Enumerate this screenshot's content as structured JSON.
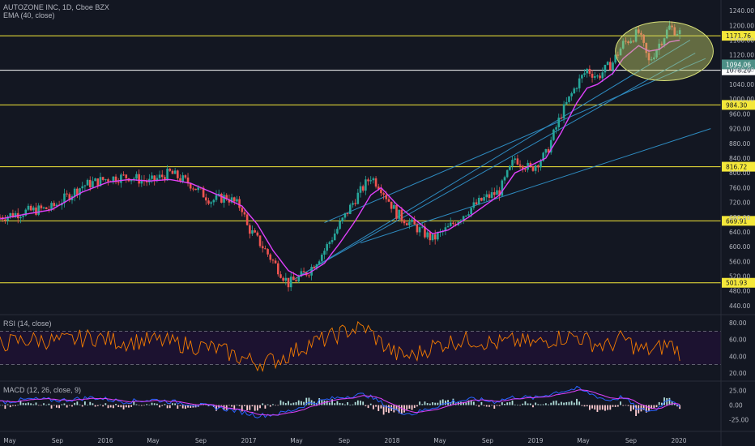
{
  "legend": {
    "main": "AUTOZONE INC, 1D, Cboe BZX",
    "ema": "EMA (40, close)",
    "rsi": "RSI (14, close)",
    "macd": "MACD (12, 26, close, 9)"
  },
  "colors": {
    "background": "#131722",
    "up": "#26a69a",
    "down": "#ef5350",
    "ema": "#e040fb",
    "level": "#f5e83a",
    "level_white": "#ffffff",
    "trend": "#2e8bc0",
    "rsi": "#f57c00",
    "rsi_band": "#1c1230",
    "macd_line": "#2962ff",
    "signal_line": "#e040fb",
    "ellipse": "#c5d26a"
  },
  "chart_data": [
    {
      "type": "candlestick",
      "title": "AUTOZONE INC, 1D, Cboe BZX",
      "x_ticks": [
        "May",
        "Sep",
        "2016",
        "May",
        "Sep",
        "2017",
        "May",
        "Sep",
        "2018",
        "May",
        "Sep",
        "2019",
        "May",
        "Sep",
        "2020"
      ],
      "y_ticks": [
        "1240.00",
        "1200.00",
        "1160.00",
        "1120.00",
        "1080.00",
        "1040.00",
        "1000.00",
        "960.00",
        "920.00",
        "880.00",
        "840.00",
        "800.00",
        "760.00",
        "720.00",
        "680.00",
        "640.00",
        "600.00",
        "560.00",
        "520.00",
        "480.00",
        "440.00"
      ],
      "ylim": [
        420,
        1260
      ],
      "price_path": [
        [
          0,
          680
        ],
        [
          5,
          695
        ],
        [
          10,
          705
        ],
        [
          16,
          765
        ],
        [
          21,
          785
        ],
        [
          25,
          790
        ],
        [
          29,
          775
        ],
        [
          33,
          800
        ],
        [
          37,
          770
        ],
        [
          41,
          725
        ],
        [
          44,
          735
        ],
        [
          47,
          705
        ],
        [
          48,
          655
        ],
        [
          51,
          600
        ],
        [
          54,
          540
        ],
        [
          56,
          500
        ],
        [
          58,
          515
        ],
        [
          60,
          535
        ],
        [
          63,
          590
        ],
        [
          66,
          660
        ],
        [
          69,
          730
        ],
        [
          72,
          790
        ],
        [
          74,
          760
        ],
        [
          77,
          690
        ],
        [
          80,
          660
        ],
        [
          84,
          620
        ],
        [
          87,
          650
        ],
        [
          91,
          700
        ],
        [
          94,
          730
        ],
        [
          97,
          750
        ],
        [
          100,
          840
        ],
        [
          103,
          810
        ],
        [
          106,
          850
        ],
        [
          109,
          960
        ],
        [
          112,
          1040
        ],
        [
          114,
          1080
        ],
        [
          116,
          1060
        ],
        [
          119,
          1100
        ],
        [
          121,
          1150
        ],
        [
          124,
          1180
        ],
        [
          126,
          1100
        ],
        [
          128,
          1150
        ],
        [
          130,
          1195
        ],
        [
          132,
          1180
        ]
      ],
      "ema": [
        [
          0,
          675
        ],
        [
          5,
          688
        ],
        [
          10,
          700
        ],
        [
          16,
          748
        ],
        [
          21,
          775
        ],
        [
          25,
          782
        ],
        [
          29,
          778
        ],
        [
          33,
          782
        ],
        [
          37,
          772
        ],
        [
          41,
          748
        ],
        [
          44,
          730
        ],
        [
          47,
          710
        ],
        [
          50,
          660
        ],
        [
          53,
          590
        ],
        [
          56,
          535
        ],
        [
          58,
          520
        ],
        [
          60,
          528
        ],
        [
          63,
          555
        ],
        [
          66,
          610
        ],
        [
          69,
          670
        ],
        [
          72,
          740
        ],
        [
          74,
          760
        ],
        [
          77,
          715
        ],
        [
          80,
          680
        ],
        [
          84,
          635
        ],
        [
          87,
          645
        ],
        [
          91,
          680
        ],
        [
          94,
          710
        ],
        [
          97,
          740
        ],
        [
          100,
          800
        ],
        [
          103,
          820
        ],
        [
          106,
          840
        ],
        [
          109,
          910
        ],
        [
          112,
          990
        ],
        [
          114,
          1030
        ],
        [
          116,
          1040
        ],
        [
          119,
          1070
        ],
        [
          121,
          1110
        ],
        [
          124,
          1145
        ],
        [
          126,
          1130
        ],
        [
          128,
          1135
        ],
        [
          130,
          1155
        ],
        [
          132,
          1160
        ]
      ],
      "horizontal_levels": [
        {
          "value": 1171.76,
          "label": "1171.76",
          "color": "#f5e83a"
        },
        {
          "value": 1078.2,
          "label": "1078.20",
          "color": "#ffffff"
        },
        {
          "value": 984.3,
          "label": "984.30",
          "color": "#f5e83a"
        },
        {
          "value": 816.72,
          "label": "816.72",
          "color": "#f5e83a"
        },
        {
          "value": 669.91,
          "label": "669.91",
          "color": "#f5e83a"
        },
        {
          "value": 501.93,
          "label": "501.93",
          "color": "#f5e83a"
        }
      ],
      "current_price": {
        "value": 1094.06,
        "label": "1094.06"
      },
      "trendlines": [
        {
          "from": [
            57,
            510
          ],
          "to": [
            134,
            1160
          ]
        },
        {
          "from": [
            58,
            520
          ],
          "to": [
            135,
            1125
          ]
        },
        {
          "from": [
            63,
            665
          ],
          "to": [
            137,
            1110
          ]
        },
        {
          "from": [
            70,
            610
          ],
          "to": [
            138,
            920
          ]
        }
      ],
      "highlight_ellipse": {
        "center": [
          129,
          1130
        ],
        "rx": 9.5,
        "ry": 80
      }
    },
    {
      "type": "line",
      "title": "RSI (14, close)",
      "y_ticks": [
        "80.00",
        "60.00",
        "40.00",
        "20.00"
      ],
      "ylim": [
        12,
        88
      ],
      "band": [
        30,
        70
      ],
      "rsi_anchors": [
        [
          0,
          55
        ],
        [
          6,
          60
        ],
        [
          12,
          58
        ],
        [
          18,
          63
        ],
        [
          24,
          57
        ],
        [
          30,
          59
        ],
        [
          36,
          54
        ],
        [
          42,
          49
        ],
        [
          46,
          40
        ],
        [
          50,
          32
        ],
        [
          54,
          36
        ],
        [
          57,
          45
        ],
        [
          60,
          55
        ],
        [
          64,
          62
        ],
        [
          68,
          72
        ],
        [
          71,
          74
        ],
        [
          74,
          56
        ],
        [
          77,
          42
        ],
        [
          80,
          40
        ],
        [
          84,
          52
        ],
        [
          88,
          58
        ],
        [
          92,
          60
        ],
        [
          96,
          55
        ],
        [
          100,
          58
        ],
        [
          104,
          55
        ],
        [
          108,
          62
        ],
        [
          112,
          64
        ],
        [
          115,
          56
        ],
        [
          118,
          52
        ],
        [
          121,
          62
        ],
        [
          124,
          48
        ],
        [
          127,
          47
        ],
        [
          130,
          55
        ],
        [
          132,
          45
        ]
      ]
    },
    {
      "type": "line",
      "title": "MACD (12, 26, close, 9)",
      "y_ticks": [
        "25.00",
        "0.00",
        "-25.00"
      ],
      "ylim": [
        -42,
        38
      ],
      "macd_anchors": [
        [
          0,
          5
        ],
        [
          6,
          10
        ],
        [
          12,
          8
        ],
        [
          18,
          13
        ],
        [
          24,
          6
        ],
        [
          30,
          9
        ],
        [
          36,
          3
        ],
        [
          42,
          -4
        ],
        [
          46,
          -10
        ],
        [
          50,
          -18
        ],
        [
          54,
          -15
        ],
        [
          57,
          -8
        ],
        [
          60,
          3
        ],
        [
          64,
          10
        ],
        [
          68,
          16
        ],
        [
          71,
          18
        ],
        [
          74,
          4
        ],
        [
          77,
          -10
        ],
        [
          80,
          -15
        ],
        [
          84,
          -4
        ],
        [
          88,
          6
        ],
        [
          92,
          10
        ],
        [
          96,
          6
        ],
        [
          100,
          14
        ],
        [
          104,
          12
        ],
        [
          108,
          22
        ],
        [
          112,
          28
        ],
        [
          115,
          18
        ],
        [
          118,
          8
        ],
        [
          121,
          14
        ],
        [
          124,
          -8
        ],
        [
          127,
          -10
        ],
        [
          130,
          12
        ],
        [
          132,
          0
        ]
      ]
    }
  ]
}
